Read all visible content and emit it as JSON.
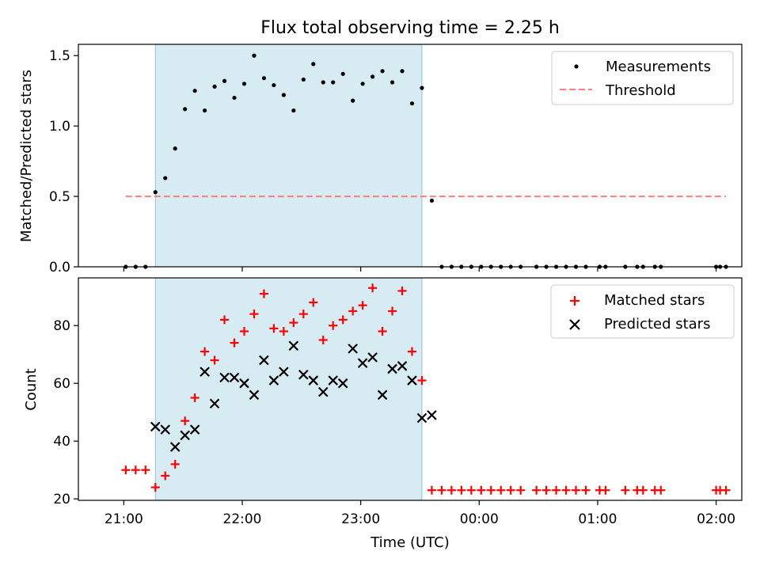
{
  "title": "Flux total observing time = 2.25 h",
  "xlabel": "Time (UTC)",
  "x_ticks": [
    "21:00",
    "22:00",
    "23:00",
    "00:00",
    "01:00",
    "02:00"
  ],
  "chart_data": [
    {
      "type": "scatter",
      "ylabel": "Matched/Predicted stars",
      "ylim": [
        0,
        1.58
      ],
      "yticks": [
        0.0,
        0.5,
        1.0,
        1.5
      ],
      "ytick_labels": [
        "0.0",
        "0.5",
        "1.0",
        "1.5"
      ],
      "legend_placement": "top-right",
      "observing_window": {
        "start": "21:16",
        "end": "23:31",
        "color": "#add8e6"
      },
      "threshold": {
        "name": "Threshold",
        "value": 0.5,
        "x_range": [
          "21:01",
          "02:05"
        ],
        "color": "#ff7f7f"
      },
      "series": [
        {
          "name": "Measurements",
          "color": "#000000",
          "x": [
            "21:01",
            "21:06",
            "21:11",
            "21:16",
            "21:21",
            "21:26",
            "21:31",
            "21:36",
            "21:41",
            "21:46",
            "21:51",
            "21:56",
            "22:01",
            "22:06",
            "22:11",
            "22:16",
            "22:21",
            "22:26",
            "22:31",
            "22:36",
            "22:41",
            "22:46",
            "22:51",
            "22:56",
            "23:01",
            "23:06",
            "23:11",
            "23:16",
            "23:21",
            "23:26",
            "23:31",
            "23:36",
            "23:41",
            "23:46",
            "23:51",
            "23:56",
            "00:01",
            "00:06",
            "00:11",
            "00:16",
            "00:21",
            "00:29",
            "00:34",
            "00:39",
            "00:44",
            "00:49",
            "00:54",
            "01:01",
            "01:04",
            "01:14",
            "01:20",
            "01:23",
            "01:29",
            "01:32",
            "02:00",
            "02:02",
            "02:05"
          ],
          "y": [
            0,
            0,
            0,
            0.53,
            0.63,
            0.84,
            1.12,
            1.25,
            1.11,
            1.28,
            1.32,
            1.2,
            1.3,
            1.5,
            1.34,
            1.29,
            1.22,
            1.11,
            1.33,
            1.44,
            1.31,
            1.31,
            1.37,
            1.18,
            1.3,
            1.35,
            1.39,
            1.31,
            1.39,
            1.16,
            1.27,
            0.47,
            0,
            0,
            0,
            0,
            0,
            0,
            0,
            0,
            0,
            0,
            0,
            0,
            0,
            0,
            0,
            0,
            0,
            0,
            0,
            0,
            0,
            0,
            0,
            0,
            0
          ]
        }
      ]
    },
    {
      "type": "scatter",
      "ylabel": "Count",
      "ylim": [
        19.5,
        96.5
      ],
      "yticks": [
        20,
        40,
        60,
        80
      ],
      "ytick_labels": [
        "20",
        "40",
        "60",
        "80"
      ],
      "legend_placement": "top-right",
      "observing_window": {
        "start": "21:16",
        "end": "23:31",
        "color": "#add8e6"
      },
      "series": [
        {
          "name": "Matched stars",
          "color": "#ff0000",
          "marker": "+",
          "x": [
            "21:01",
            "21:06",
            "21:11",
            "21:16",
            "21:21",
            "21:26",
            "21:31",
            "21:36",
            "21:41",
            "21:46",
            "21:51",
            "21:56",
            "22:01",
            "22:06",
            "22:11",
            "22:16",
            "22:21",
            "22:26",
            "22:31",
            "22:36",
            "22:41",
            "22:46",
            "22:51",
            "22:56",
            "23:01",
            "23:06",
            "23:11",
            "23:16",
            "23:21",
            "23:26",
            "23:31",
            "23:36",
            "23:41",
            "23:46",
            "23:51",
            "23:56",
            "00:01",
            "00:06",
            "00:11",
            "00:16",
            "00:21",
            "00:29",
            "00:34",
            "00:39",
            "00:44",
            "00:49",
            "00:54",
            "01:01",
            "01:04",
            "01:14",
            "01:20",
            "01:23",
            "01:29",
            "01:32",
            "02:00",
            "02:02",
            "02:05"
          ],
          "y": [
            30,
            30,
            30,
            24,
            28,
            32,
            47,
            55,
            71,
            68,
            82,
            74,
            78,
            84,
            91,
            79,
            78,
            81,
            84,
            88,
            75,
            80,
            82,
            85,
            87,
            93,
            78,
            85,
            92,
            71,
            61,
            23,
            23,
            23,
            23,
            23,
            23,
            23,
            23,
            23,
            23,
            23,
            23,
            23,
            23,
            23,
            23,
            23,
            23,
            23,
            23,
            23,
            23,
            23,
            23,
            23,
            23
          ]
        },
        {
          "name": "Predicted stars",
          "color": "#000000",
          "marker": "x",
          "x": [
            "21:16",
            "21:21",
            "21:26",
            "21:31",
            "21:36",
            "21:41",
            "21:46",
            "21:51",
            "21:56",
            "22:01",
            "22:06",
            "22:11",
            "22:16",
            "22:21",
            "22:26",
            "22:31",
            "22:36",
            "22:41",
            "22:46",
            "22:51",
            "22:56",
            "23:01",
            "23:06",
            "23:11",
            "23:16",
            "23:21",
            "23:26",
            "23:31",
            "23:36"
          ],
          "y": [
            45,
            44,
            38,
            42,
            44,
            64,
            53,
            62,
            62,
            60,
            56,
            68,
            61,
            64,
            73,
            63,
            61,
            57,
            61,
            60,
            72,
            67,
            69,
            56,
            65,
            66,
            61,
            48,
            49
          ]
        }
      ]
    }
  ]
}
